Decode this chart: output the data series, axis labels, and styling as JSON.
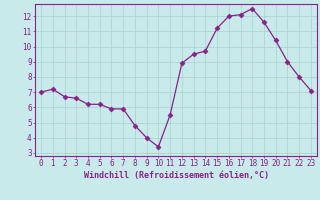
{
  "x": [
    0,
    1,
    2,
    3,
    4,
    5,
    6,
    7,
    8,
    9,
    10,
    11,
    12,
    13,
    14,
    15,
    16,
    17,
    18,
    19,
    20,
    21,
    22,
    23
  ],
  "y": [
    7.0,
    7.2,
    6.7,
    6.6,
    6.2,
    6.2,
    5.9,
    5.9,
    4.8,
    4.0,
    3.4,
    5.5,
    8.9,
    9.5,
    9.7,
    11.2,
    12.0,
    12.1,
    12.5,
    11.6,
    10.4,
    9.0,
    8.0,
    7.1
  ],
  "xlim": [
    -0.5,
    23.5
  ],
  "ylim": [
    2.8,
    12.8
  ],
  "yticks": [
    3,
    4,
    5,
    6,
    7,
    8,
    9,
    10,
    11,
    12
  ],
  "xticks": [
    0,
    1,
    2,
    3,
    4,
    5,
    6,
    7,
    8,
    9,
    10,
    11,
    12,
    13,
    14,
    15,
    16,
    17,
    18,
    19,
    20,
    21,
    22,
    23
  ],
  "xlabel": "Windchill (Refroidissement éolien,°C)",
  "line_color": "#882288",
  "marker": "D",
  "marker_size": 2.5,
  "bg_color": "#c8eaea",
  "grid_color": "#a8d0d0",
  "axis_label_color": "#882288",
  "tick_label_color": "#882288",
  "spine_color": "#882288",
  "tick_fontsize": 5.5,
  "xlabel_fontsize": 6.0
}
